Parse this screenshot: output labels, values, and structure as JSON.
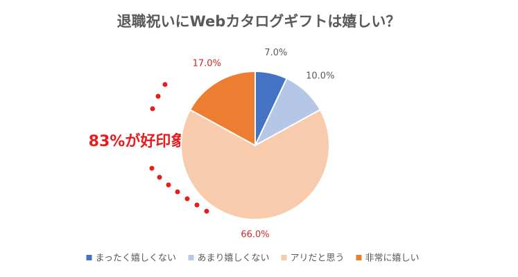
{
  "chart_data": {
    "type": "pie",
    "title": "退職祝いにWebカタログギフトは嬉しい？",
    "annotation": "83%が好印象",
    "categories": [
      "まったく嬉しくない",
      "あまり嬉しくない",
      "アリだと思う",
      "非常に嬉しい"
    ],
    "values": [
      7,
      10,
      66,
      17
    ],
    "value_labels": [
      "7.0%",
      "10.0%",
      "66.0%",
      "17.0%"
    ],
    "colors": [
      "#4472c4",
      "#b4c7e7",
      "#f8cbad",
      "#ed7d31"
    ],
    "legend": "bottom"
  }
}
